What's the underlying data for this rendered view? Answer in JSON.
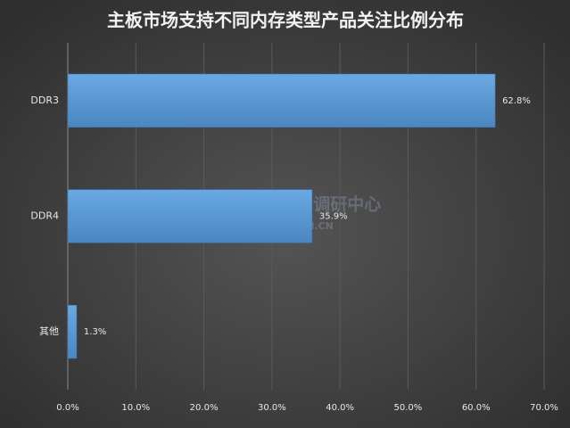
{
  "chart_data": {
    "type": "bar",
    "orientation": "horizontal",
    "title": "主板市场支持不同内存类型产品关注比例分布",
    "categories": [
      "DDR3",
      "DDR4",
      "其他"
    ],
    "values": [
      62.8,
      35.9,
      1.3
    ],
    "value_labels": [
      "62.8%",
      "35.9%",
      "1.3%"
    ],
    "color": "#5b9bd5",
    "xlim": [
      0,
      70
    ],
    "xticks": [
      {
        "value": 0,
        "label": "0.0%"
      },
      {
        "value": 10,
        "label": "10.0%"
      },
      {
        "value": 20,
        "label": "20.0%"
      },
      {
        "value": 30,
        "label": "30.0%"
      },
      {
        "value": 40,
        "label": "40.0%"
      },
      {
        "value": 50,
        "label": "50.0%"
      },
      {
        "value": 60,
        "label": "60.0%"
      },
      {
        "value": 70,
        "label": "70.0%"
      }
    ],
    "grid": true,
    "watermark": [
      "ZDC互联网消费调研中心",
      "ZDC.ZOL.COM.CN"
    ]
  }
}
